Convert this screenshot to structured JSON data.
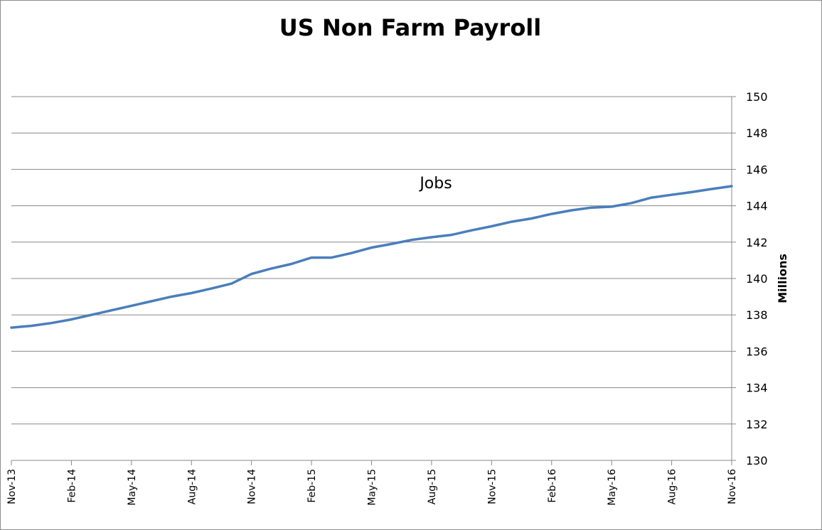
{
  "chart_data": {
    "type": "line",
    "title": "US Non Farm Payroll",
    "ylabel": "Millions",
    "xlabel": "",
    "ylim": [
      130,
      150
    ],
    "yticks": [
      130,
      132,
      134,
      136,
      138,
      140,
      142,
      144,
      146,
      148,
      150
    ],
    "y_axis_side": "right",
    "grid": "horizontal",
    "x_ticks": [
      "Nov-13",
      "Feb-14",
      "May-14",
      "Aug-14",
      "Nov-14",
      "Feb-15",
      "May-15",
      "Aug-15",
      "Nov-15",
      "Feb-16",
      "May-16",
      "Aug-16",
      "Nov-16"
    ],
    "line_color": "#4a7ebb",
    "series": [
      {
        "name": "Jobs",
        "x": [
          "Nov-13",
          "Dec-13",
          "Jan-14",
          "Feb-14",
          "Mar-14",
          "Apr-14",
          "May-14",
          "Jun-14",
          "Jul-14",
          "Aug-14",
          "Sep-14",
          "Oct-14",
          "Nov-14",
          "Dec-14",
          "Jan-15",
          "Feb-15",
          "Mar-15",
          "Apr-15",
          "May-15",
          "Jun-15",
          "Jul-15",
          "Aug-15",
          "Sep-15",
          "Oct-15",
          "Nov-15",
          "Dec-15",
          "Jan-16",
          "Feb-16",
          "Mar-16",
          "Apr-16",
          "May-16",
          "Jun-16",
          "Jul-16",
          "Aug-16",
          "Sep-16",
          "Oct-16",
          "Nov-16"
        ],
        "values": [
          137.3,
          137.4,
          137.55,
          137.75,
          138.0,
          138.25,
          138.5,
          138.75,
          139.0,
          139.2,
          139.45,
          139.72,
          140.25,
          140.55,
          140.8,
          141.15,
          141.15,
          141.4,
          141.7,
          141.9,
          142.12,
          142.27,
          142.4,
          142.65,
          142.87,
          143.12,
          143.3,
          143.55,
          143.75,
          143.9,
          143.95,
          144.15,
          144.45,
          144.6,
          144.75,
          144.92,
          145.08
        ]
      }
    ],
    "annotation": "Jobs"
  }
}
